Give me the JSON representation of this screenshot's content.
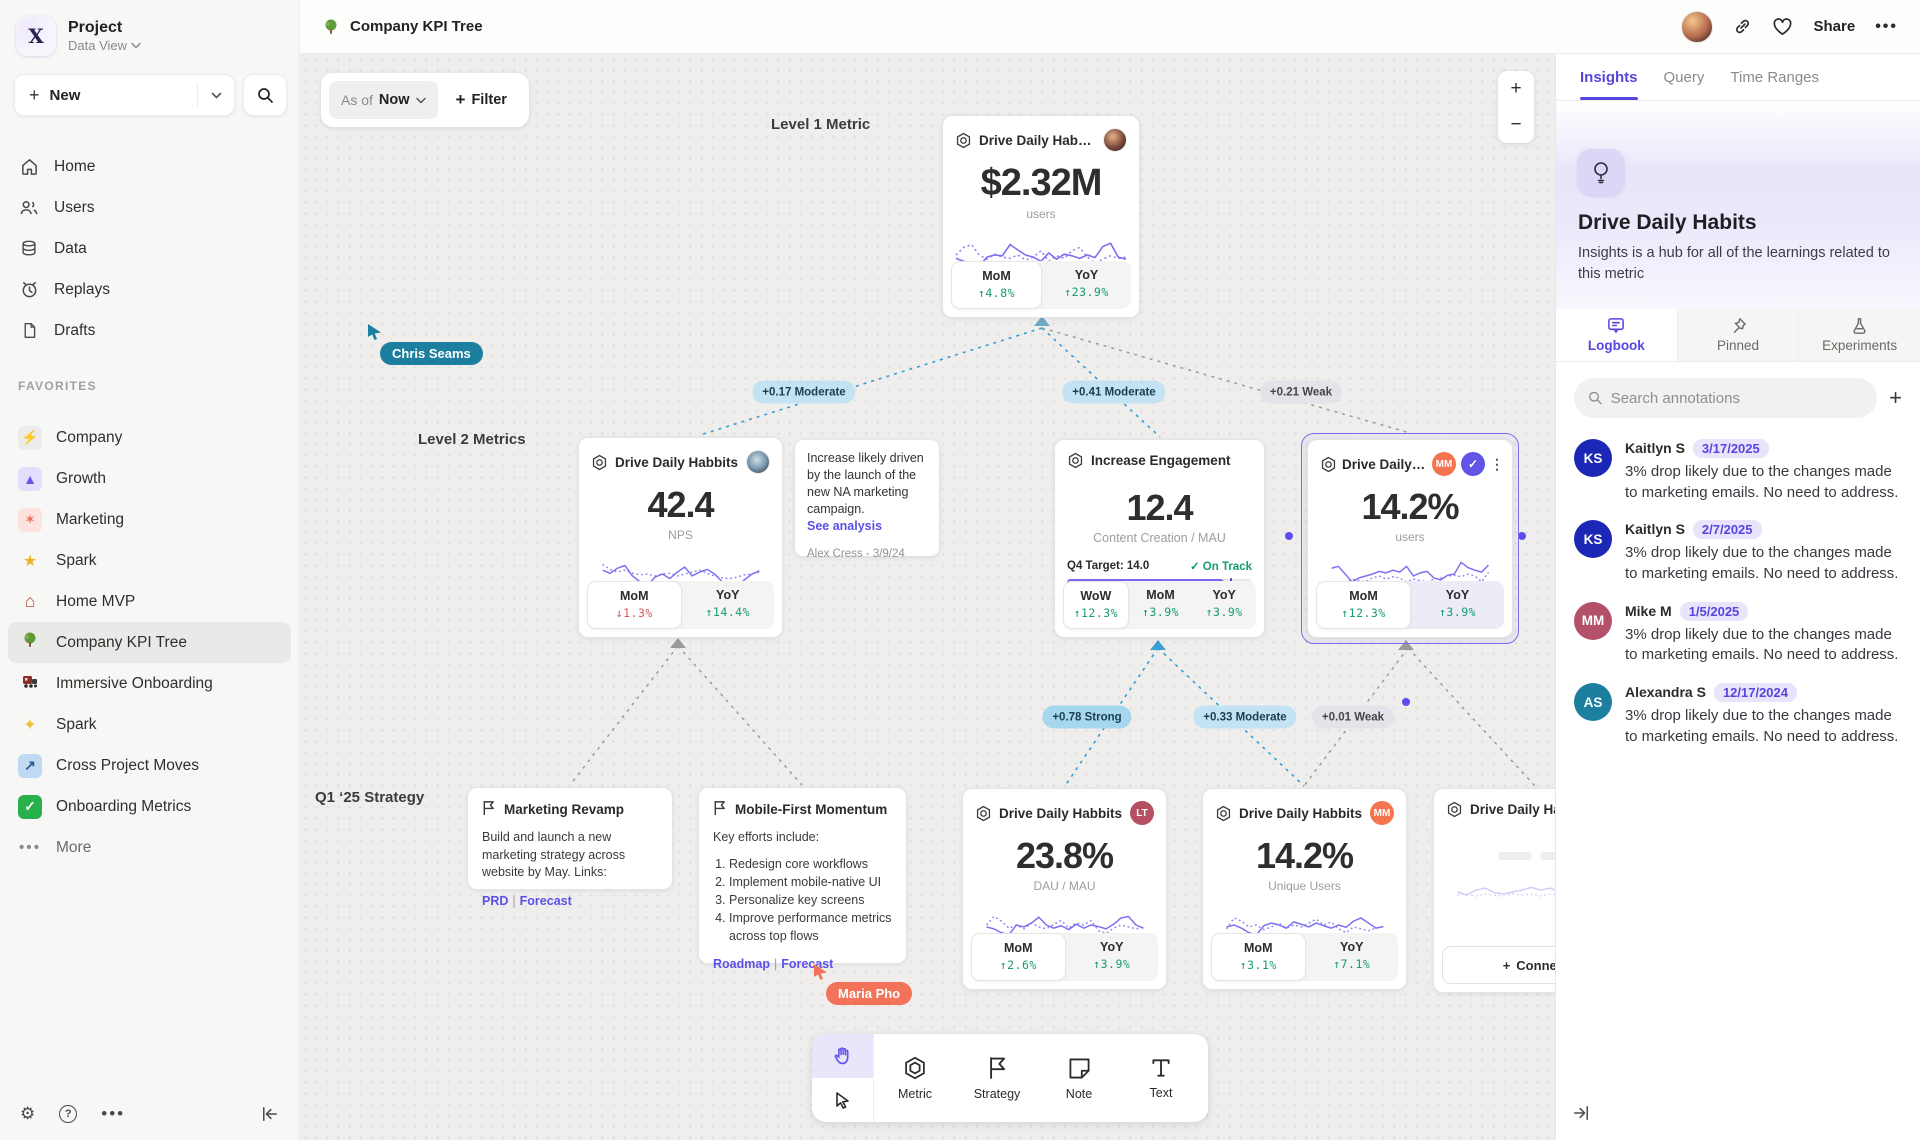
{
  "colors": {
    "accent": "#5646e0",
    "positive": "#169d6d",
    "negative": "#d95555",
    "edge_blue": "#2f9fd6",
    "cursor_teal": "#1c7f9f",
    "cursor_orange": "#f2735a",
    "spark": "#7b70f0"
  },
  "sidebar": {
    "project": {
      "logo": "X",
      "name": "Project",
      "view": "Data View"
    },
    "new_label": "New",
    "nav": [
      {
        "label": "Home"
      },
      {
        "label": "Users"
      },
      {
        "label": "Data"
      },
      {
        "label": "Replays"
      },
      {
        "label": "Drafts"
      }
    ],
    "favorites_label": "FAVORITES",
    "favorites": [
      {
        "label": "Company",
        "glyph": "⚡"
      },
      {
        "label": "Growth",
        "glyph": "▲"
      },
      {
        "label": "Marketing",
        "glyph": "✶"
      },
      {
        "label": "Spark",
        "glyph": "★"
      },
      {
        "label": "Home MVP",
        "glyph": "⌂"
      },
      {
        "label": "Company KPI Tree",
        "glyph": "tree"
      },
      {
        "label": "Immersive Onboarding",
        "glyph": "train"
      },
      {
        "label": "Spark",
        "glyph": "✦"
      },
      {
        "label": "Cross Project Moves",
        "glyph": "↗"
      },
      {
        "label": "Onboarding Metrics",
        "glyph": "✓"
      }
    ],
    "more_label": "More"
  },
  "topbar": {
    "title": "Company KPI Tree",
    "share_label": "Share"
  },
  "canvas": {
    "as_of_label": "As of",
    "as_of_value": "Now",
    "filter_label": "Filter",
    "zoom_in": "+",
    "zoom_out": "−",
    "level1_label": "Level 1 Metric",
    "level2_label": "Level 2 Metrics",
    "strategy_label": "Q1 ‘25 Strategy",
    "cursors": [
      {
        "name": "Chris Seams"
      },
      {
        "name": "Maria Pho"
      }
    ],
    "edges": [
      {
        "label": "+0.17 Moderate"
      },
      {
        "label": "+0.41 Moderate"
      },
      {
        "label": "+0.21 Weak"
      },
      {
        "label": "+0.78 Strong"
      },
      {
        "label": "+0.33 Moderate"
      },
      {
        "label": "+0.01 Weak"
      }
    ],
    "cards": {
      "l1": {
        "title": "Drive Daily Habbits",
        "value": "$2.32M",
        "unit": "users",
        "stats": [
          {
            "label": "MoM",
            "value": "↑4.8%"
          },
          {
            "label": "YoY",
            "value": "↑23.9%"
          }
        ],
        "spark": [
          0.42,
          0.35,
          0.3,
          0.22,
          0.45,
          0.5,
          0.48,
          0.75,
          0.62,
          0.5,
          0.45,
          0.35,
          0.55,
          0.4,
          0.52,
          0.48,
          0.42,
          0.5,
          0.44,
          0.7,
          0.78,
          0.45,
          0.4
        ],
        "spark2": [
          0.5,
          0.68,
          0.75,
          0.5,
          0.4,
          0.52,
          0.45,
          0.42,
          0.5,
          0.38,
          0.45,
          0.6,
          0.35,
          0.48,
          0.42,
          0.6,
          0.68,
          0.45,
          0.3,
          0.4,
          0.48,
          0.42,
          0.45
        ]
      },
      "l2a": {
        "title": "Drive Daily Habbits",
        "value": "42.4",
        "unit": "NPS",
        "stats": [
          {
            "label": "MoM",
            "value": "↓1.3%"
          },
          {
            "label": "YoY",
            "value": "↑14.4%"
          }
        ],
        "spark": [
          0.6,
          0.52,
          0.65,
          0.72,
          0.45,
          0.3,
          0.2,
          0.42,
          0.5,
          0.38,
          0.55,
          0.68,
          0.45,
          0.55,
          0.62,
          0.5,
          0.3,
          0.25,
          0.2,
          0.35,
          0.5,
          0.58
        ],
        "spark2": [
          0.75,
          0.62,
          0.55,
          0.6,
          0.52,
          0.48,
          0.5,
          0.45,
          0.5,
          0.52,
          0.45,
          0.5,
          0.55,
          0.6,
          0.52,
          0.45,
          0.4,
          0.38,
          0.42,
          0.48,
          0.5,
          0.55
        ]
      },
      "note": {
        "text": "Increase likely driven by the launch of the new NA marketing campaign.",
        "link": "See analysis",
        "author": "Alex Cress - 3/9/24"
      },
      "l2b": {
        "title": "Increase Engagement",
        "value": "12.4",
        "unit": "Content Creation / MAU",
        "target_label": "Q4 Target: 14.0",
        "status": "On Track",
        "progress": 0.85,
        "marker": 0.88,
        "stats": [
          {
            "label": "WoW",
            "value": "↑12.3%"
          },
          {
            "label": "MoM",
            "value": "↑3.9%"
          },
          {
            "label": "YoY",
            "value": "↑3.9%"
          }
        ]
      },
      "l2c": {
        "title": "Drive Daily Habb..",
        "badge": "MM",
        "value": "14.2%",
        "unit": "users",
        "stats": [
          {
            "label": "MoM",
            "value": "↑12.3%"
          },
          {
            "label": "YoY",
            "value": "↑3.9%"
          }
        ],
        "spark": [
          0.7,
          0.75,
          0.55,
          0.35,
          0.45,
          0.5,
          0.55,
          0.62,
          0.58,
          0.65,
          0.6,
          0.75,
          0.5,
          0.58,
          0.62,
          0.45,
          0.4,
          0.52,
          0.55,
          0.85,
          0.72,
          0.65,
          0.6,
          0.78
        ],
        "spark2": [
          0.35,
          0.32,
          0.3,
          0.42,
          0.38,
          0.35,
          0.45,
          0.5,
          0.42,
          0.48,
          0.45,
          0.35,
          0.42,
          0.38,
          0.35,
          0.42,
          0.45,
          0.5,
          0.52,
          0.48,
          0.55,
          0.5,
          0.35,
          0.6
        ]
      },
      "s1": {
        "title": "Marketing Revamp",
        "body": "Build and launch a new marketing strategy across website by May. Links:",
        "links": [
          "PRD",
          "Forecast"
        ]
      },
      "s2": {
        "title": "Mobile-First Momentum",
        "intro": "Key efforts include:",
        "items": [
          "Redesign core workflows",
          "Implement mobile-native UI",
          "Personalize key screens",
          "Improve performance metrics across top flows"
        ],
        "links": [
          "Roadmap",
          "Forecast"
        ]
      },
      "l3a": {
        "title": "Drive Daily Habbits",
        "badge": "LT",
        "value": "23.8%",
        "unit": "DAU / MAU",
        "stats": [
          {
            "label": "MoM",
            "value": "↑2.6%"
          },
          {
            "label": "YoY",
            "value": "↑3.9%"
          }
        ],
        "spark": [
          0.45,
          0.4,
          0.3,
          0.25,
          0.5,
          0.45,
          0.55,
          0.7,
          0.5,
          0.42,
          0.48,
          0.38,
          0.52,
          0.42,
          0.5,
          0.46,
          0.4,
          0.52,
          0.68,
          0.72,
          0.5,
          0.42
        ],
        "spark2": [
          0.5,
          0.72,
          0.6,
          0.42,
          0.5,
          0.4,
          0.55,
          0.45,
          0.4,
          0.52,
          0.62,
          0.42,
          0.55,
          0.5,
          0.62,
          0.35,
          0.28,
          0.42,
          0.5,
          0.45,
          0.4,
          0.44
        ]
      },
      "l3b": {
        "title": "Drive Daily Habbits",
        "badge": "MM",
        "value": "14.2%",
        "unit": "Unique Users",
        "stats": [
          {
            "label": "MoM",
            "value": "↑3.1%"
          },
          {
            "label": "YoY",
            "value": "↑7.1%"
          }
        ],
        "spark": [
          0.45,
          0.5,
          0.42,
          0.3,
          0.25,
          0.48,
          0.55,
          0.5,
          0.42,
          0.58,
          0.52,
          0.45,
          0.55,
          0.48,
          0.42,
          0.5,
          0.44,
          0.6,
          0.68,
          0.55,
          0.42,
          0.46
        ],
        "spark2": [
          0.4,
          0.68,
          0.6,
          0.45,
          0.5,
          0.38,
          0.45,
          0.55,
          0.42,
          0.5,
          0.45,
          0.55,
          0.65,
          0.5,
          0.58,
          0.4,
          0.3,
          0.45,
          0.4,
          0.35,
          0.42,
          0.46
        ]
      },
      "skeleton": {
        "title": "Drive Daily Habbits",
        "connect_label": "Connect",
        "spark": [
          0.5,
          0.42,
          0.55,
          0.6,
          0.48,
          0.45,
          0.5,
          0.55,
          0.62,
          0.55,
          0.6,
          0.52,
          0.58,
          0.5,
          0.45,
          0.65,
          0.55,
          0.5
        ],
        "spark2": [
          0.42,
          0.45,
          0.4,
          0.44,
          0.42,
          0.4,
          0.45,
          0.42,
          0.44,
          0.4,
          0.45,
          0.42,
          0.4,
          0.44,
          0.42,
          0.45,
          0.4,
          0.42
        ]
      }
    },
    "toolbar": {
      "tools": [
        {
          "label": "Metric"
        },
        {
          "label": "Strategy"
        },
        {
          "label": "Note"
        },
        {
          "label": "Text"
        }
      ]
    }
  },
  "panel": {
    "tabs": [
      {
        "label": "Insights"
      },
      {
        "label": "Query"
      },
      {
        "label": "Time Ranges"
      }
    ],
    "title": "Drive Daily Habits",
    "subtitle": "Insights is a hub for all of the learnings related to this metric",
    "subtabs": [
      {
        "label": "Logbook"
      },
      {
        "label": "Pinned"
      },
      {
        "label": "Experiments"
      }
    ],
    "search_placeholder": "Search annotations",
    "annotations": [
      {
        "initials": "KS",
        "name": "Kaitlyn S",
        "date": "3/17/2025",
        "text": "3% drop likely due to the changes made to marketing emails. No need to address.",
        "color": "#1b27b5"
      },
      {
        "initials": "KS",
        "name": "Kaitlyn S",
        "date": "2/7/2025",
        "text": "3% drop likely due to the changes made to marketing emails. No need to address.",
        "color": "#1b27b5"
      },
      {
        "initials": "MM",
        "name": "Mike M",
        "date": "1/5/2025",
        "text": "3% drop likely due to the changes made to marketing emails. No need to address.",
        "color": "#b3506a"
      },
      {
        "initials": "AS",
        "name": "Alexandra S",
        "date": "12/17/2024",
        "text": "3% drop likely due to the changes made to marketing emails. No need to address.",
        "color": "#1d7f9e"
      }
    ]
  }
}
